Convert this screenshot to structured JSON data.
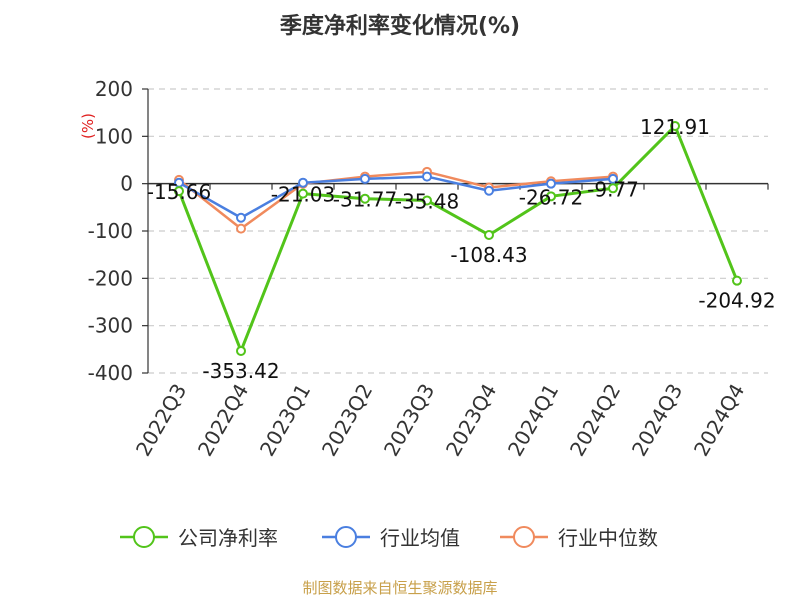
{
  "colors": {
    "net_margin": "#52c41a",
    "industry_avg": "#4a7fe0",
    "industry_median": "#f08a5d",
    "source": "#c8a04a",
    "unit": "#e02020",
    "grid": "#cccccc",
    "axis": "#333333"
  },
  "source": "制图数据来自恒生聚源数据库",
  "chart_data": {
    "type": "line",
    "title": "季度净利率变化情况(%)",
    "ylabel": "(%)",
    "xlabel": "",
    "ylim": [
      -400,
      200
    ],
    "yticks": [
      200,
      100,
      0,
      -100,
      -200,
      -300,
      -400
    ],
    "grid": "horizontal dashed",
    "legend_position": "bottom",
    "categories": [
      "2022Q3",
      "2022Q4",
      "2023Q1",
      "2023Q2",
      "2023Q3",
      "2023Q4",
      "2024Q1",
      "2024Q2",
      "2024Q3",
      "2024Q4"
    ],
    "series": [
      {
        "name": "公司净利率",
        "values": [
          -15.66,
          -353.42,
          -21.03,
          -31.77,
          -35.48,
          -108.43,
          -26.72,
          -9.77,
          121.91,
          -204.92
        ],
        "labels": [
          "-15.66",
          "-353.42",
          "-21.03",
          "-31.77",
          "-35.48",
          "-108.43",
          "-26.72",
          "-9.77",
          "121.91",
          "-204.92"
        ]
      },
      {
        "name": "行业均值",
        "values": [
          2,
          -72,
          2,
          10,
          15,
          -15,
          0,
          10,
          null,
          null
        ]
      },
      {
        "name": "行业中位数",
        "values": [
          8,
          -95,
          0,
          15,
          25,
          -8,
          5,
          15,
          null,
          null
        ]
      }
    ]
  }
}
